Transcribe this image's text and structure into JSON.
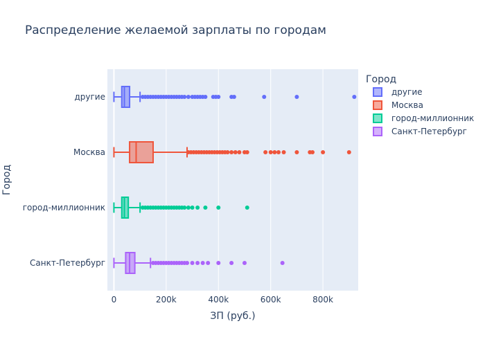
{
  "chart_data": {
    "type": "box",
    "orientation": "horizontal",
    "title": "Распределение желаемой зарплаты по городам",
    "xlabel": "ЗП (руб.)",
    "ylabel": "Город",
    "xlim": [
      -25000,
      935000
    ],
    "xticks": [
      {
        "value": 0,
        "label": "0"
      },
      {
        "value": 200000,
        "label": "200k"
      },
      {
        "value": 400000,
        "label": "400k"
      },
      {
        "value": 600000,
        "label": "600k"
      },
      {
        "value": 800000,
        "label": "800k"
      }
    ],
    "grid": true,
    "legend": {
      "title": "Город",
      "placement": "right"
    },
    "series": [
      {
        "name": "другие",
        "color": "#636efa",
        "min": 0,
        "q1": 30000,
        "median": 40000,
        "q3": 60000,
        "max": 100000,
        "outliers": [
          110000,
          120000,
          130000,
          140000,
          150000,
          160000,
          170000,
          180000,
          190000,
          200000,
          210000,
          220000,
          230000,
          240000,
          250000,
          260000,
          270000,
          285000,
          300000,
          310000,
          320000,
          330000,
          340000,
          350000,
          380000,
          390000,
          400000,
          450000,
          460000,
          575000,
          700000,
          920000
        ]
      },
      {
        "name": "Москва",
        "color": "#ef553b",
        "min": 0,
        "q1": 60000,
        "median": 85000,
        "q3": 150000,
        "max": 280000,
        "outliers": [
          285000,
          295000,
          305000,
          315000,
          325000,
          335000,
          345000,
          355000,
          365000,
          375000,
          385000,
          395000,
          405000,
          415000,
          425000,
          435000,
          450000,
          465000,
          480000,
          500000,
          510000,
          580000,
          600000,
          615000,
          630000,
          650000,
          700000,
          750000,
          760000,
          800000,
          900000
        ]
      },
      {
        "name": "город-миллионник",
        "color": "#00cc96",
        "min": 0,
        "q1": 30000,
        "median": 40000,
        "q3": 55000,
        "max": 100000,
        "outliers": [
          110000,
          120000,
          130000,
          140000,
          150000,
          160000,
          170000,
          180000,
          190000,
          200000,
          210000,
          220000,
          230000,
          240000,
          250000,
          260000,
          270000,
          285000,
          300000,
          320000,
          350000,
          400000,
          510000
        ]
      },
      {
        "name": "Санкт-Петербург",
        "color": "#ab63fa",
        "min": 0,
        "q1": 45000,
        "median": 60000,
        "q3": 80000,
        "max": 140000,
        "outliers": [
          150000,
          160000,
          170000,
          180000,
          190000,
          200000,
          210000,
          220000,
          230000,
          240000,
          250000,
          260000,
          270000,
          280000,
          300000,
          320000,
          340000,
          360000,
          400000,
          450000,
          500000,
          645000
        ]
      }
    ]
  }
}
